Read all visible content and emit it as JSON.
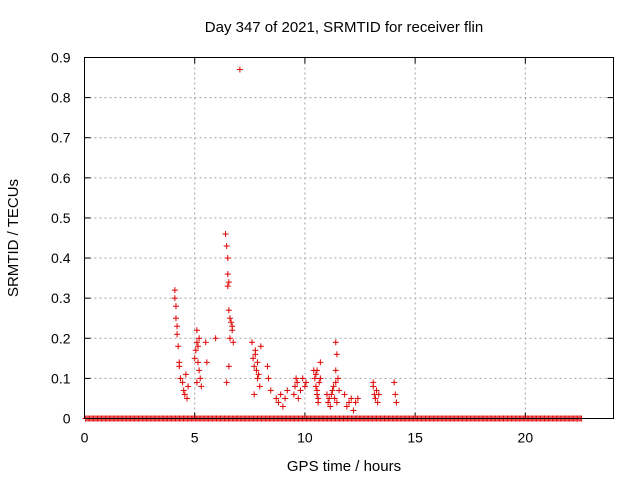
{
  "chart_data": {
    "type": "scatter",
    "title": "Day 347 of 2021, SRMTID for receiver flin",
    "xlabel": "GPS time / hours",
    "ylabel": "SRMTID / TECUs",
    "xlim": [
      0,
      24
    ],
    "ylim": [
      0,
      0.9
    ],
    "xticks": [
      0,
      5,
      10,
      15,
      20
    ],
    "xtick_labels": [
      "0",
      "5",
      "10",
      "15",
      "20"
    ],
    "yticks": [
      0,
      0.1,
      0.2,
      0.3,
      0.4,
      0.5,
      0.6,
      0.7,
      0.8,
      0.9
    ],
    "ytick_labels": [
      "0",
      "0.1",
      "0.2",
      "0.3",
      "0.4",
      "0.5",
      "0.6",
      "0.7",
      "0.8",
      "0.9"
    ],
    "grid": true,
    "marker": "+",
    "color": "#e00000",
    "zero_baseline_x_range": [
      0.05,
      22.6
    ],
    "series": [
      {
        "name": "SRMTID",
        "x": [
          4.1,
          4.1,
          4.15,
          4.15,
          4.2,
          4.2,
          4.25,
          4.3,
          4.3,
          4.35,
          4.45,
          4.5,
          4.55,
          4.6,
          4.65,
          4.7,
          5.0,
          5.05,
          5.1,
          5.1,
          5.15,
          5.2,
          5.2,
          5.25,
          5.3,
          5.1,
          5.15,
          5.5,
          5.55,
          5.95,
          6.4,
          6.45,
          6.5,
          6.5,
          6.55,
          6.6,
          6.65,
          6.7,
          6.55,
          6.6,
          6.7,
          6.75,
          6.5,
          6.55,
          6.45,
          7.05,
          7.6,
          7.65,
          7.7,
          7.75,
          7.8,
          7.85,
          7.9,
          7.95,
          8.0,
          7.7,
          7.75,
          7.85,
          8.3,
          8.35,
          8.45,
          8.7,
          8.8,
          8.9,
          9.0,
          9.1,
          9.2,
          9.5,
          9.55,
          9.6,
          9.65,
          9.7,
          9.8,
          9.9,
          10.0,
          10.05,
          10.4,
          10.45,
          10.5,
          10.55,
          10.6,
          10.65,
          10.7,
          10.5,
          10.55,
          10.6,
          10.55,
          10.7,
          11.0,
          11.05,
          11.1,
          11.15,
          11.2,
          11.25,
          11.3,
          11.35,
          11.4,
          11.45,
          11.5,
          11.55,
          11.4,
          11.45,
          11.4,
          11.8,
          11.9,
          12.0,
          12.1,
          12.2,
          12.3,
          12.4,
          13.1,
          13.15,
          13.2,
          13.25,
          13.3,
          13.35,
          13.1,
          14.05,
          14.1,
          14.15
        ],
        "y": [
          0.32,
          0.3,
          0.28,
          0.25,
          0.23,
          0.21,
          0.18,
          0.14,
          0.13,
          0.1,
          0.09,
          0.07,
          0.06,
          0.11,
          0.05,
          0.08,
          0.15,
          0.17,
          0.19,
          0.22,
          0.18,
          0.2,
          0.12,
          0.1,
          0.08,
          0.09,
          0.14,
          0.19,
          0.14,
          0.2,
          0.46,
          0.43,
          0.4,
          0.36,
          0.34,
          0.25,
          0.24,
          0.23,
          0.27,
          0.2,
          0.22,
          0.19,
          0.33,
          0.13,
          0.09,
          0.87,
          0.19,
          0.15,
          0.13,
          0.17,
          0.12,
          0.1,
          0.11,
          0.08,
          0.18,
          0.06,
          0.16,
          0.14,
          0.13,
          0.1,
          0.07,
          0.05,
          0.04,
          0.06,
          0.03,
          0.05,
          0.07,
          0.06,
          0.08,
          0.1,
          0.09,
          0.05,
          0.07,
          0.1,
          0.08,
          0.09,
          0.12,
          0.1,
          0.08,
          0.06,
          0.05,
          0.09,
          0.14,
          0.11,
          0.07,
          0.04,
          0.12,
          0.1,
          0.06,
          0.04,
          0.05,
          0.03,
          0.06,
          0.07,
          0.08,
          0.05,
          0.09,
          0.04,
          0.1,
          0.07,
          0.19,
          0.16,
          0.12,
          0.06,
          0.03,
          0.04,
          0.05,
          0.02,
          0.04,
          0.05,
          0.08,
          0.06,
          0.05,
          0.07,
          0.04,
          0.06,
          0.09,
          0.09,
          0.06,
          0.04
        ]
      }
    ]
  }
}
